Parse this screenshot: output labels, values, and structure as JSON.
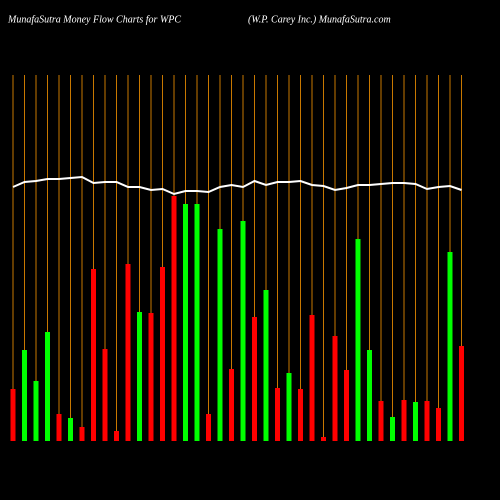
{
  "chart_data": {
    "type": "bar",
    "title": "MunafaSutra  Money Flow  Charts for WPC",
    "subtitle": "(W.P. Carey Inc.) MunafaSutra.com",
    "categories": [
      null,
      null,
      null,
      null,
      null,
      null,
      null,
      null,
      null,
      null,
      null,
      null,
      null,
      null,
      null,
      null,
      null,
      null,
      null,
      null,
      null,
      null,
      null,
      null,
      null,
      null,
      null,
      null,
      null,
      null,
      null,
      null,
      null,
      null,
      null,
      null,
      null,
      null,
      null,
      null
    ],
    "values": [
      52,
      91,
      60,
      109,
      27,
      23,
      14,
      172,
      92,
      10,
      177,
      129,
      128,
      174,
      245,
      237,
      237,
      27,
      212,
      72,
      220,
      124,
      151,
      53,
      68,
      52,
      126,
      4,
      105,
      71,
      202,
      91,
      40,
      24,
      41,
      39,
      40,
      33,
      189,
      95
    ],
    "bar_colors": [
      "#ff0000",
      "#00ff00",
      "#00ff00",
      "#00ff00",
      "#ff0000",
      "#00ff00",
      "#ff0000",
      "#ff0000",
      "#ff0000",
      "#ff0000",
      "#ff0000",
      "#00ff00",
      "#ff0000",
      "#ff0000",
      "#ff0000",
      "#00ff00",
      "#00ff00",
      "#ff0000",
      "#00ff00",
      "#ff0000",
      "#00ff00",
      "#ff0000",
      "#00ff00",
      "#ff0000",
      "#00ff00",
      "#ff0000",
      "#ff0000",
      "#ff0000",
      "#ff0000",
      "#ff0000",
      "#00ff00",
      "#00ff00",
      "#ff0000",
      "#00ff00",
      "#ff0000",
      "#00ff00",
      "#ff0000",
      "#ff0000",
      "#00ff00",
      "#ff0000"
    ],
    "line_values": [
      254,
      259,
      260,
      262,
      262,
      263,
      264,
      258,
      259,
      259,
      254,
      254,
      251,
      252,
      247,
      250,
      250,
      249,
      254,
      256,
      254,
      260,
      256,
      259,
      259,
      260,
      256,
      255,
      251,
      253,
      256,
      256,
      257,
      258,
      258,
      257,
      252,
      254,
      255,
      251
    ],
    "line_color": "#ffffff",
    "ylim": [
      0,
      260
    ],
    "grid": true,
    "grid_color": "#c87800"
  }
}
